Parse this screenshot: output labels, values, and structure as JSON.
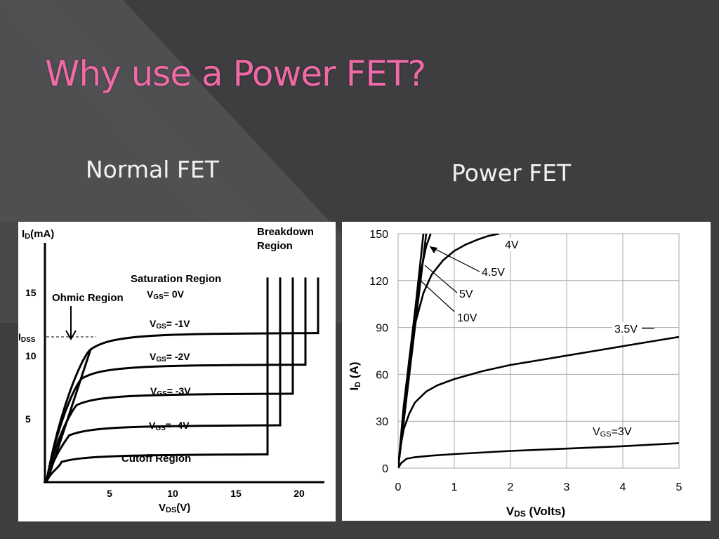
{
  "slide": {
    "title": "Why use a Power FET?",
    "left_heading": "Normal FET",
    "right_heading": "Power FET"
  },
  "colors": {
    "title": "#f06aa8",
    "background": "#3e3e40",
    "text": "#f2f2f2"
  },
  "chart_data": [
    {
      "type": "line",
      "title": "",
      "ylabel": {
        "main": "I",
        "sub": "D",
        "unit": "(mA)"
      },
      "xlabel": {
        "main": "V",
        "sub": "DS",
        "unit": "(V)"
      },
      "xlim": [
        0,
        22
      ],
      "ylim": [
        0,
        16
      ],
      "x_ticks": [
        5,
        10,
        15,
        20
      ],
      "y_ticks": [
        5,
        10,
        15
      ],
      "idss_label": {
        "main": "I",
        "sub": "DSS"
      },
      "idss_value": 11.5,
      "grid": false,
      "region_labels": {
        "ohmic": "Ohmic Region",
        "saturation": "Saturation Region",
        "breakdown": "Breakdown\nRegion",
        "cutoff": "Cutoff Region"
      },
      "series": [
        {
          "label_main": "V",
          "label_sub": "GS",
          "label_value": "= 0V",
          "knee_x": 3.5,
          "knee_y": 10.5,
          "sat_y": 11.8,
          "breakdown_x": 21.5
        },
        {
          "label_main": "V",
          "label_sub": "GS",
          "label_value": "= -1V",
          "knee_x": 2.8,
          "knee_y": 8.2,
          "sat_y": 9.3,
          "breakdown_x": 20.5
        },
        {
          "label_main": "V",
          "label_sub": "GS",
          "label_value": "= -2V",
          "knee_x": 2.4,
          "knee_y": 6.1,
          "sat_y": 7.0,
          "breakdown_x": 19.5
        },
        {
          "label_main": "V",
          "label_sub": "GS",
          "label_value": "= -3V",
          "knee_x": 1.8,
          "knee_y": 3.7,
          "sat_y": 4.5,
          "breakdown_x": 18.5
        },
        {
          "label_main": "V",
          "label_sub": "GS",
          "label_value": "= -4V",
          "knee_x": 1.2,
          "knee_y": 1.6,
          "sat_y": 2.2,
          "breakdown_x": 17.5
        }
      ]
    },
    {
      "type": "line",
      "title": "",
      "ylabel": {
        "main": "I",
        "sub": "D",
        "unit": "(A)"
      },
      "xlabel": {
        "main": "V",
        "sub": "DS",
        "unit": "(Volts)"
      },
      "xlim": [
        0,
        5
      ],
      "ylim": [
        0,
        150
      ],
      "x_ticks": [
        0,
        1,
        2,
        3,
        4,
        5
      ],
      "y_ticks": [
        0,
        30,
        60,
        90,
        120,
        150
      ],
      "grid": true,
      "series": [
        {
          "name": "VGS=3V",
          "label_main": "V",
          "label_sub": "GS",
          "label_value": "=3V",
          "x": [
            0,
            0.05,
            0.15,
            0.3,
            0.6,
            1,
            2,
            3,
            4,
            5
          ],
          "y": [
            0,
            3,
            6,
            7,
            8,
            9,
            11,
            12.5,
            14,
            16
          ]
        },
        {
          "name": "3.5V",
          "label_value": "3.5V",
          "x": [
            0,
            0.05,
            0.1,
            0.2,
            0.3,
            0.5,
            0.7,
            1,
            1.5,
            2,
            2.5,
            3,
            3.5,
            4,
            4.5,
            5
          ],
          "y": [
            0,
            15,
            25,
            35,
            42,
            49,
            53,
            57,
            62,
            66,
            69,
            72,
            75,
            78,
            81,
            84
          ]
        },
        {
          "name": "4V",
          "label_value": "4V",
          "x": [
            0,
            0.1,
            0.2,
            0.3,
            0.45,
            0.6,
            0.8,
            1.0,
            1.2,
            1.4,
            1.6,
            1.8
          ],
          "y": [
            0,
            40,
            70,
            92,
            112,
            124,
            133,
            139,
            143,
            146,
            148.5,
            150
          ]
        },
        {
          "name": "4.5V",
          "label_value": "4.5V",
          "x": [
            0,
            0.1,
            0.2,
            0.3,
            0.4,
            0.5,
            0.58
          ],
          "y": [
            0,
            35,
            70,
            100,
            125,
            142,
            150
          ]
        },
        {
          "name": "5V",
          "label_value": "5V",
          "x": [
            0,
            0.1,
            0.2,
            0.3,
            0.4,
            0.5
          ],
          "y": [
            0,
            30,
            60,
            90,
            120,
            150
          ]
        },
        {
          "name": "10V",
          "label_value": "10V",
          "x": [
            0,
            0.1,
            0.2,
            0.3,
            0.4,
            0.45
          ],
          "y": [
            0,
            33,
            66,
            100,
            133,
            150
          ]
        }
      ]
    }
  ]
}
